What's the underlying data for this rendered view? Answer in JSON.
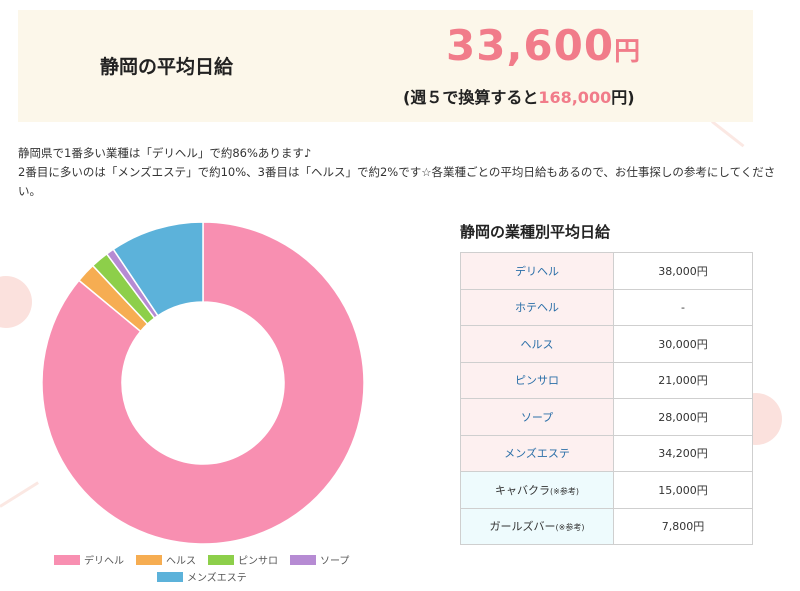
{
  "header": {
    "label": "静岡の平均日給",
    "average_amount": "33,600",
    "average_unit": "円",
    "weekly_prefix": "(週５で換算すると",
    "weekly_amount": "168,000",
    "weekly_suffix": "円)"
  },
  "description": {
    "line1": "静岡県で1番多い業種は「デリヘル」で約86%あります♪",
    "line2": "2番目に多いのは「メンズエステ」で約10%、3番目は「ヘルス」で約2%です☆各業種ごとの平均日給もあるので、お仕事探しの参考にしてください。"
  },
  "table": {
    "title": "静岡の業種別平均日給",
    "rows": [
      {
        "category": "デリヘル",
        "note": "",
        "wage": "38,000円"
      },
      {
        "category": "ホテヘル",
        "note": "",
        "wage": "-"
      },
      {
        "category": "ヘルス",
        "note": "",
        "wage": "30,000円"
      },
      {
        "category": "ピンサロ",
        "note": "",
        "wage": "21,000円"
      },
      {
        "category": "ソープ",
        "note": "",
        "wage": "28,000円"
      },
      {
        "category": "メンズエステ",
        "note": "",
        "wage": "34,200円"
      },
      {
        "category": "キャバクラ",
        "note": "(※参考)",
        "wage": "15,000円"
      },
      {
        "category": "ガールズバー",
        "note": "(※参考)",
        "wage": "7,800円"
      }
    ]
  },
  "chart_data": {
    "type": "pie",
    "donut": true,
    "categories": [
      "デリヘル",
      "ヘルス",
      "ピンサロ",
      "ソープ",
      "メンズエステ"
    ],
    "values": [
      86,
      2,
      1.8,
      0.8,
      9.4
    ],
    "colors": [
      "#f88fb1",
      "#f6ad52",
      "#8dcf4a",
      "#b68bd3",
      "#5cb2da"
    ],
    "legend_position": "bottom"
  }
}
